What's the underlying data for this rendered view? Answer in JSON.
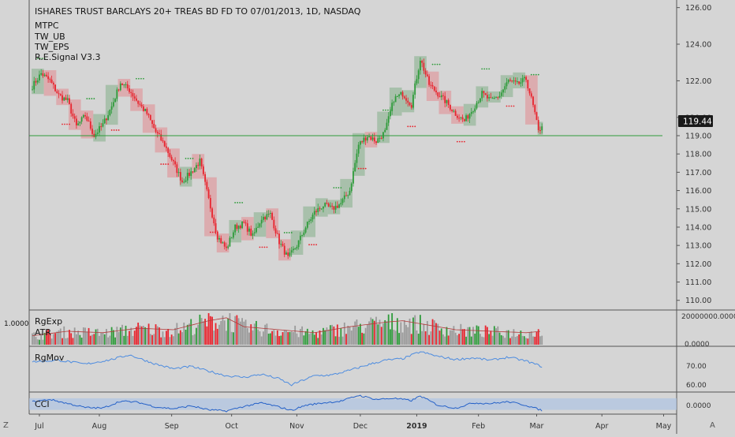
{
  "header": {
    "title": "ISHARES TRUST BARCLAYS 20+ TREAS BD FD TO 07/01/2013, 1D, NASDAQ",
    "indicators": [
      "MTPC",
      "TW_UB",
      "TW_EPS",
      "R.E.Signal V3.3"
    ]
  },
  "panes": {
    "volume": {
      "labels": [
        "RgExp",
        "ATR"
      ],
      "left_value": "1.0000",
      "axis_ticks": [
        "20000000.0000",
        "0.0000"
      ]
    },
    "rgmov": {
      "label": "RgMov",
      "axis_ticks": [
        "70.00",
        "60.00"
      ]
    },
    "cci": {
      "label": "CCI",
      "axis_ticks": [
        "0.0000"
      ]
    }
  },
  "bottom_bar": {
    "left_icon": "Z",
    "right_icon": "A"
  },
  "colors": {
    "background": "#d5d5d5",
    "up": "#2e9b3a",
    "down": "#e8242e",
    "up_box": "#98b89c",
    "down_box": "#dd9ea2",
    "hline": "#2e9b3a",
    "price_tag_bg": "#1a1a1a",
    "rgmov_line": "#4d8ce0",
    "cci_line": "#2662c8",
    "cci_band": "#aec3e2",
    "atr_line": "#b33a3a"
  },
  "chart_data": {
    "type": "candlestick",
    "symbol": "ISHARES TRUST BARCLAYS 20+ TREAS BD FD TO 07/01/2013",
    "interval": "1D",
    "exchange": "NASDAQ",
    "x_tick_labels": [
      "Jul",
      "Aug",
      "Sep",
      "Oct",
      "Nov",
      "Dec",
      "2019",
      "Feb",
      "Mar",
      "Apr",
      "May"
    ],
    "y_tick_labels": [
      "126.00",
      "124.00",
      "122.00",
      "120.00",
      "119.00",
      "118.00",
      "117.00",
      "116.00",
      "115.00",
      "114.00",
      "113.00",
      "112.00",
      "111.00",
      "110.00"
    ],
    "ylim": [
      109.6,
      126.2
    ],
    "last_price": "119.44",
    "horizontal_line": 119.0,
    "close_path": [
      [
        0,
        121.7
      ],
      [
        5,
        122.4
      ],
      [
        10,
        122.0
      ],
      [
        15,
        121.2
      ],
      [
        20,
        120.9
      ],
      [
        25,
        119.5
      ],
      [
        30,
        120.1
      ],
      [
        35,
        119.0
      ],
      [
        40,
        119.6
      ],
      [
        45,
        120.6
      ],
      [
        50,
        121.9
      ],
      [
        55,
        121.5
      ],
      [
        60,
        120.8
      ],
      [
        65,
        120.2
      ],
      [
        70,
        119.2
      ],
      [
        75,
        118.5
      ],
      [
        80,
        117.5
      ],
      [
        85,
        116.5
      ],
      [
        90,
        117.0
      ],
      [
        95,
        117.6
      ],
      [
        100,
        115.5
      ],
      [
        105,
        113.5
      ],
      [
        110,
        112.8
      ],
      [
        115,
        114.0
      ],
      [
        120,
        114.2
      ],
      [
        125,
        113.5
      ],
      [
        130,
        114.5
      ],
      [
        135,
        114.7
      ],
      [
        140,
        113.2
      ],
      [
        145,
        112.3
      ],
      [
        150,
        113.0
      ],
      [
        155,
        114.0
      ],
      [
        160,
        114.8
      ],
      [
        165,
        115.2
      ],
      [
        170,
        115.0
      ],
      [
        175,
        115.3
      ],
      [
        180,
        116.0
      ],
      [
        185,
        118.5
      ],
      [
        190,
        119.0
      ],
      [
        195,
        118.7
      ],
      [
        200,
        119.2
      ],
      [
        205,
        121.0
      ],
      [
        210,
        121.3
      ],
      [
        215,
        120.7
      ],
      [
        220,
        123.2
      ],
      [
        225,
        121.8
      ],
      [
        230,
        121.3
      ],
      [
        235,
        120.8
      ],
      [
        240,
        120.2
      ],
      [
        245,
        119.8
      ],
      [
        250,
        120.5
      ],
      [
        255,
        121.3
      ],
      [
        260,
        120.9
      ],
      [
        265,
        121.2
      ],
      [
        270,
        122.0
      ],
      [
        275,
        121.8
      ],
      [
        280,
        122.1
      ],
      [
        283,
        121.0
      ],
      [
        285,
        120.2
      ],
      [
        287,
        119.2
      ],
      [
        289,
        119.6
      ]
    ],
    "volume_path": [
      [
        0,
        30
      ],
      [
        20,
        45
      ],
      [
        40,
        40
      ],
      [
        60,
        55
      ],
      [
        80,
        50
      ],
      [
        100,
        80
      ],
      [
        110,
        90
      ],
      [
        120,
        60
      ],
      [
        140,
        50
      ],
      [
        160,
        40
      ],
      [
        180,
        60
      ],
      [
        200,
        75
      ],
      [
        210,
        80
      ],
      [
        220,
        70
      ],
      [
        240,
        50
      ],
      [
        260,
        45
      ],
      [
        280,
        40
      ],
      [
        289,
        45
      ]
    ],
    "rgmov_path": [
      [
        0,
        73.5
      ],
      [
        15,
        74.5
      ],
      [
        30,
        72.0
      ],
      [
        45,
        75.0
      ],
      [
        55,
        78.0
      ],
      [
        60,
        76.0
      ],
      [
        70,
        72.0
      ],
      [
        80,
        69.0
      ],
      [
        90,
        70.5
      ],
      [
        100,
        67.5
      ],
      [
        110,
        64.5
      ],
      [
        120,
        63.5
      ],
      [
        130,
        65.5
      ],
      [
        140,
        62.5
      ],
      [
        147,
        58.5
      ],
      [
        152,
        61.0
      ],
      [
        160,
        64.5
      ],
      [
        170,
        65.0
      ],
      [
        180,
        68.0
      ],
      [
        190,
        71.5
      ],
      [
        200,
        74.5
      ],
      [
        210,
        75.5
      ],
      [
        220,
        80.0
      ],
      [
        230,
        77.0
      ],
      [
        240,
        75.0
      ],
      [
        250,
        76.0
      ],
      [
        260,
        74.5
      ],
      [
        270,
        76.5
      ],
      [
        280,
        74.0
      ],
      [
        289,
        70.5
      ]
    ],
    "rgmov_ylim": [
      55,
      82
    ],
    "cci_path": [
      [
        0,
        40
      ],
      [
        10,
        80
      ],
      [
        20,
        10
      ],
      [
        30,
        -60
      ],
      [
        40,
        -70
      ],
      [
        50,
        50
      ],
      [
        60,
        30
      ],
      [
        70,
        -50
      ],
      [
        80,
        -80
      ],
      [
        90,
        -30
      ],
      [
        100,
        -100
      ],
      [
        110,
        -120
      ],
      [
        120,
        -40
      ],
      [
        130,
        20
      ],
      [
        140,
        -50
      ],
      [
        147,
        -110
      ],
      [
        155,
        -20
      ],
      [
        165,
        20
      ],
      [
        175,
        50
      ],
      [
        185,
        150
      ],
      [
        195,
        80
      ],
      [
        205,
        100
      ],
      [
        215,
        60
      ],
      [
        220,
        140
      ],
      [
        230,
        -20
      ],
      [
        240,
        -70
      ],
      [
        250,
        20
      ],
      [
        260,
        10
      ],
      [
        270,
        40
      ],
      [
        280,
        -20
      ],
      [
        289,
        -110
      ]
    ],
    "cci_ylim": [
      -160,
      180
    ]
  }
}
